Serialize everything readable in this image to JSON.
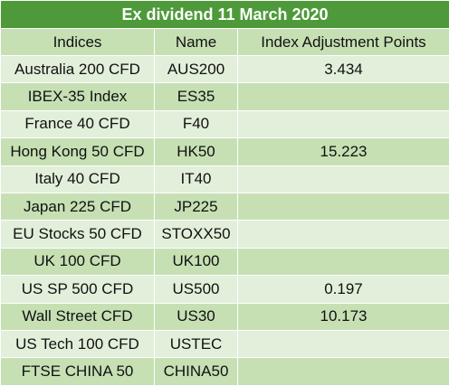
{
  "title": "Ex dividend 11 March 2020",
  "table": {
    "header": [
      "Indices",
      "Name",
      "Index Adjustment Points"
    ],
    "rows": [
      {
        "index": "Australia 200 CFD",
        "name": "AUS200",
        "points": 3.434
      },
      {
        "index": "IBEX-35 Index",
        "name": "ES35"
      },
      {
        "index": "France 40 CFD",
        "name": "F40"
      },
      {
        "index": "Hong Kong 50 CFD",
        "name": "HK50",
        "points": 15.223
      },
      {
        "index": "Italy 40 CFD",
        "name": "IT40"
      },
      {
        "index": "Japan 225 CFD",
        "name": "JP225"
      },
      {
        "index": "EU Stocks 50 CFD",
        "name": "STOXX50"
      },
      {
        "index": "UK 100 CFD",
        "name": "UK100"
      },
      {
        "index": "US SP 500 CFD",
        "name": "US500",
        "points": 0.197
      },
      {
        "index": "Wall Street CFD",
        "name": "US30",
        "points": 10.173
      },
      {
        "index": "US Tech 100 CFD",
        "name": "USTEC"
      },
      {
        "index": "FTSE CHINA 50",
        "name": "CHINA50"
      }
    ]
  }
}
